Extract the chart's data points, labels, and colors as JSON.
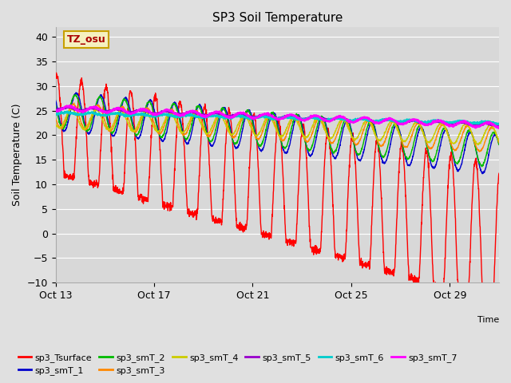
{
  "title": "SP3 Soil Temperature",
  "xlabel": "Time",
  "ylabel": "Soil Temperature (C)",
  "ylim": [
    -10,
    42
  ],
  "yticks": [
    -10,
    -5,
    0,
    5,
    10,
    15,
    20,
    25,
    30,
    35,
    40
  ],
  "fig_bg_color": "#e0e0e0",
  "plot_bg_color": "#d8d8d8",
  "grid_color": "#ffffff",
  "annotation_text": "TZ_osu",
  "annotation_box_color": "#f5f0c0",
  "annotation_border_color": "#c8a000",
  "series_colors": {
    "sp3_Tsurface": "#ff0000",
    "sp3_smT_1": "#0000cc",
    "sp3_smT_2": "#00bb00",
    "sp3_smT_3": "#ff8800",
    "sp3_smT_4": "#cccc00",
    "sp3_smT_5": "#9900cc",
    "sp3_smT_6": "#00cccc",
    "sp3_smT_7": "#ff00ff"
  },
  "xtick_days": [
    0,
    4,
    8,
    12,
    16
  ],
  "xtick_labels": [
    "Oct 13",
    "Oct 17",
    "Oct 21",
    "Oct 25",
    "Oct 29"
  ],
  "n_days": 18,
  "pts_per_day": 120
}
